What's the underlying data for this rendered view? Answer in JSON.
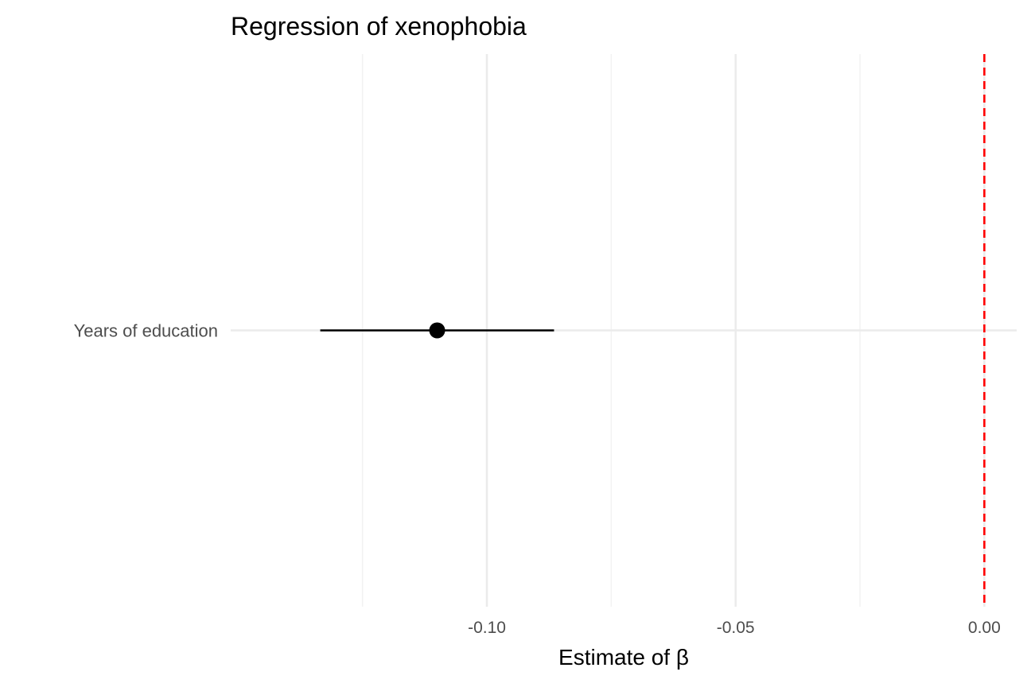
{
  "chart_data": {
    "type": "scatter",
    "title": "Regression of xenophobia",
    "xlabel": "Estimate of β",
    "ylabel": "",
    "xlim": [
      -0.1515,
      0.0065
    ],
    "x_ticks": [
      -0.1,
      -0.05,
      0.0
    ],
    "x_tick_labels": [
      "-0.10",
      "-0.05",
      "0.00"
    ],
    "x_minor_ticks": [
      -0.125,
      -0.075,
      -0.025
    ],
    "categories": [
      "Years of education"
    ],
    "points": [
      {
        "label": "Years of education",
        "estimate": -0.11,
        "ci_low": -0.1335,
        "ci_high": -0.0865
      }
    ],
    "reference_line": {
      "x": 0.0,
      "color": "#ff0000",
      "style": "dashed"
    },
    "grid": true,
    "legend": "none"
  },
  "colors": {
    "grid_major": "#ebebeb",
    "grid_minor": "#f2f2f2",
    "point": "#000000",
    "reference": "#ff0000",
    "tick_label": "#4d4d4d",
    "title": "#000000"
  }
}
